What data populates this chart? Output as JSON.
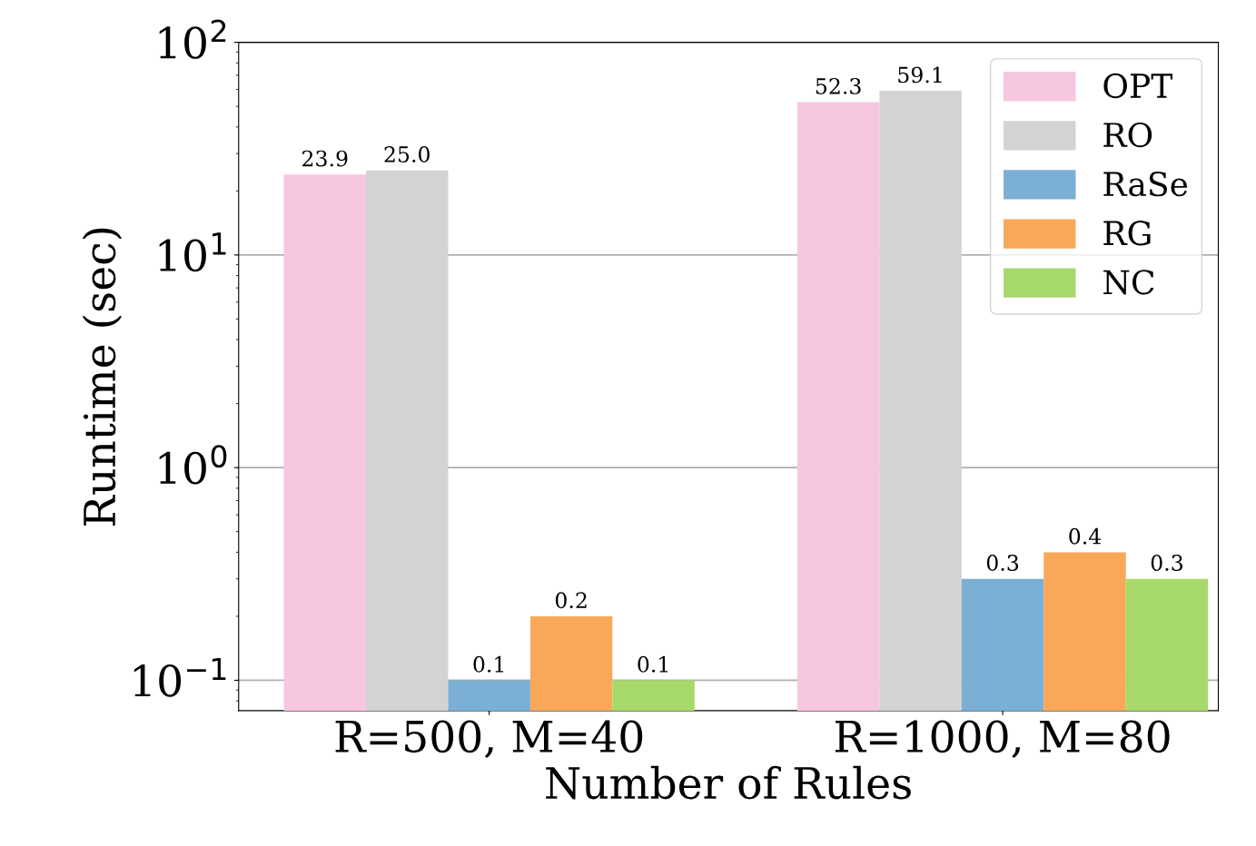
{
  "chart_data": {
    "type": "bar",
    "xlabel": "Number of Rules",
    "ylabel": "Runtime (sec)",
    "categories": [
      "R=500, M=40",
      "R=1000, M=80"
    ],
    "series": [
      {
        "name": "OPT",
        "color": "#f7c6e0",
        "values": [
          23.9,
          52.3
        ],
        "value_labels": [
          "23.9",
          "52.3"
        ]
      },
      {
        "name": "RO",
        "color": "#d3d3d3",
        "values": [
          25.0,
          59.1
        ],
        "value_labels": [
          "25.0",
          "59.1"
        ]
      },
      {
        "name": "RaSe",
        "color": "#7bafd4",
        "values": [
          0.1,
          0.3
        ],
        "value_labels": [
          "0.1",
          "0.3"
        ]
      },
      {
        "name": "RG",
        "color": "#f9a85a",
        "values": [
          0.2,
          0.4
        ],
        "value_labels": [
          "0.2",
          "0.4"
        ]
      },
      {
        "name": "NC",
        "color": "#a6d96a",
        "values": [
          0.1,
          0.3
        ],
        "value_labels": [
          "0.1",
          "0.3"
        ]
      }
    ],
    "log": "y",
    "ylim": [
      0.072,
      100
    ],
    "yticks": [
      {
        "value": 0.1,
        "label": "10$^{−1}$"
      },
      {
        "value": 1,
        "label": "10$^{0}$"
      },
      {
        "value": 10,
        "label": "10$^{1}$"
      },
      {
        "value": 100,
        "label": "10$^{2}$"
      }
    ],
    "grid": "y",
    "legend": "top right"
  }
}
